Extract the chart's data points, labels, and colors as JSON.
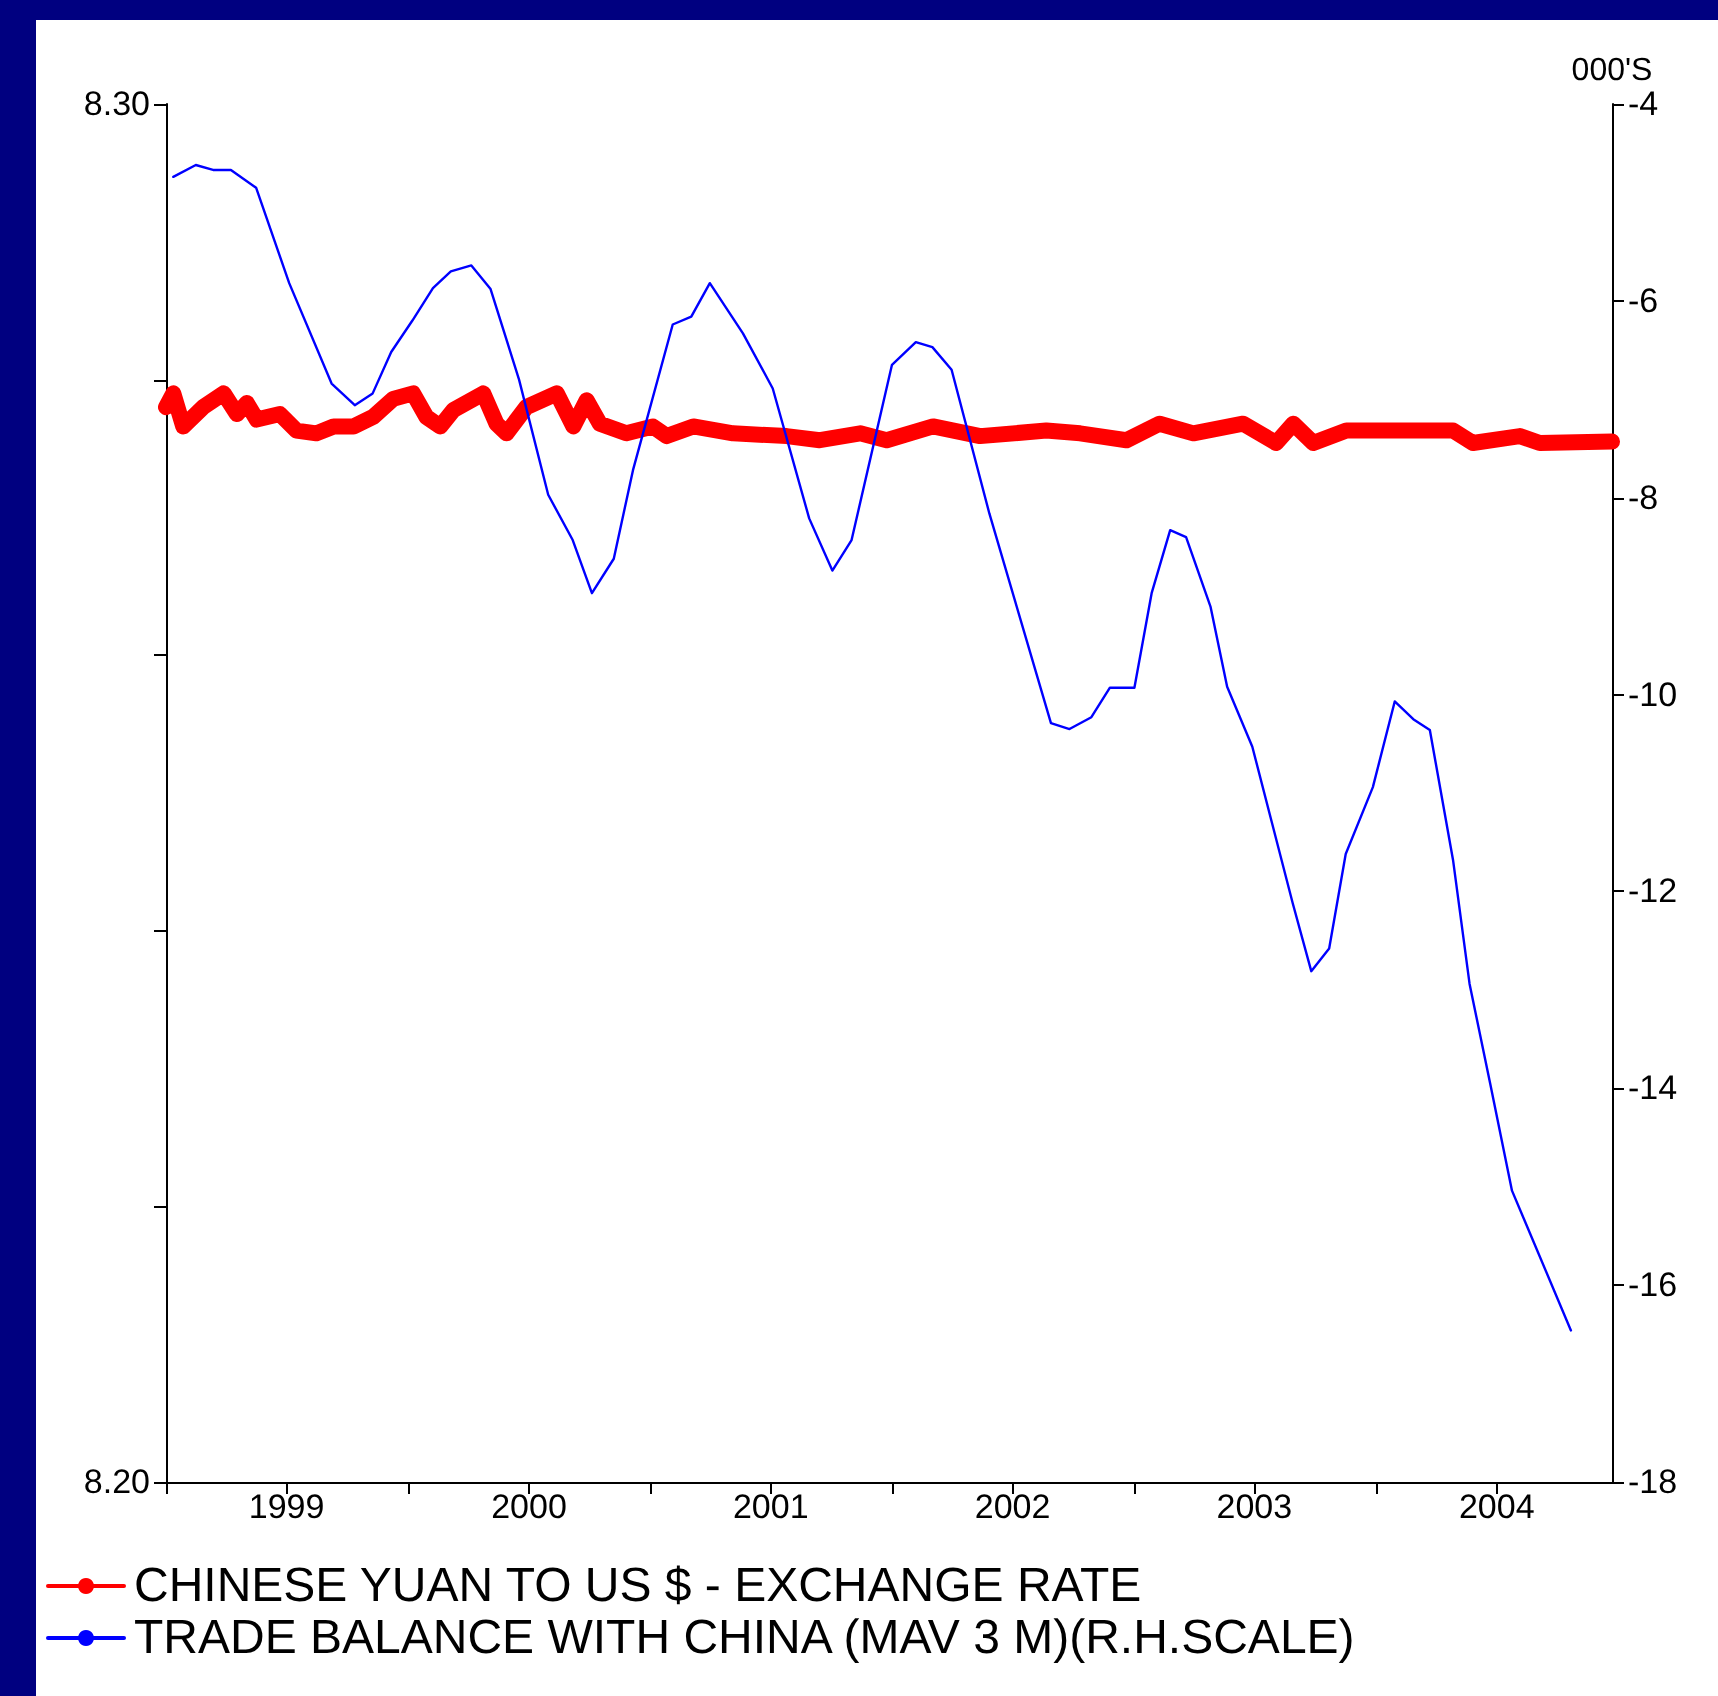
{
  "chart_data": {
    "type": "line",
    "xlim": [
      "1999-01-01",
      "2004-12-23"
    ],
    "xticks": [
      {
        "value": "1999-01-01",
        "label": null
      },
      {
        "value": "1999-07-02",
        "label": "1999"
      },
      {
        "value": "2000-01-01",
        "label": null
      },
      {
        "value": "2000-07-02",
        "label": "2000"
      },
      {
        "value": "2001-01-01",
        "label": null
      },
      {
        "value": "2001-07-02",
        "label": "2001"
      },
      {
        "value": "2002-01-01",
        "label": null
      },
      {
        "value": "2002-07-02",
        "label": "2002"
      },
      {
        "value": "2003-01-01",
        "label": null
      },
      {
        "value": "2003-07-02",
        "label": "2003"
      },
      {
        "value": "2004-01-01",
        "label": null
      },
      {
        "value": "2004-07-02",
        "label": "2004"
      }
    ],
    "ylim": [
      8.2,
      8.3
    ],
    "yticks": [
      {
        "value": 8.2,
        "label": "8.20"
      },
      {
        "value": 8.22,
        "label": null
      },
      {
        "value": 8.24,
        "label": null
      },
      {
        "value": 8.26,
        "label": null
      },
      {
        "value": 8.28,
        "label": null
      },
      {
        "value": 8.3,
        "label": "8.30"
      }
    ],
    "y2label": "000'S",
    "y2lim": [
      -18,
      -4
    ],
    "y2ticks": [
      -18,
      -16,
      -14,
      -12,
      -10,
      -8,
      -6,
      -4
    ],
    "grid": false,
    "legend": "bottom left",
    "marker": "none",
    "line_style": "solid",
    "series": [
      {
        "name": "CHINESE YUAN TO US $ - EXCHANGE RATE",
        "color": "#ff0000",
        "x": [
          "1999-01-01",
          "1999-01-12",
          "1999-01-27",
          "1999-02-26",
          "1999-03-29",
          "1999-04-18",
          "1999-05-03",
          "1999-05-18",
          "1999-06-22",
          "1999-07-17",
          "1999-08-16",
          "1999-09-11",
          "1999-10-11",
          "1999-11-10",
          "1999-12-10",
          "2000-01-09",
          "2000-01-29",
          "2000-02-19",
          "2000-03-10",
          "2000-04-24",
          "2000-05-14",
          "2000-05-29",
          "2000-06-28",
          "2000-08-13",
          "2000-09-07",
          "2000-09-27",
          "2000-10-17",
          "2000-11-26",
          "2001-01-05",
          "2001-01-26",
          "2001-03-07",
          "2001-05-06",
          "2001-07-26",
          "2001-09-14",
          "2001-11-14",
          "2001-12-24",
          "2002-03-04",
          "2002-05-14",
          "2002-08-22",
          "2002-10-12",
          "2002-12-21",
          "2003-02-09",
          "2003-04-01",
          "2003-06-15",
          "2003-08-04",
          "2003-08-30",
          "2003-09-29",
          "2003-11-18",
          "2004-02-27",
          "2004-04-27",
          "2004-05-27",
          "2004-08-06",
          "2004-09-05",
          "2004-12-23"
        ],
        "values": [
          8.278,
          8.279,
          8.2766,
          8.278,
          8.279,
          8.2775,
          8.2783,
          8.2771,
          8.2775,
          8.2763,
          8.2761,
          8.2766,
          8.2766,
          8.2773,
          8.2786,
          8.279,
          8.2773,
          8.2766,
          8.2778,
          8.279,
          8.2768,
          8.2761,
          8.278,
          8.279,
          8.2766,
          8.2785,
          8.2768,
          8.2761,
          8.2766,
          8.2759,
          8.2766,
          8.2761,
          8.2759,
          8.2756,
          8.2761,
          8.2756,
          8.2766,
          8.2759,
          8.2763,
          8.2761,
          8.2756,
          8.2768,
          8.2761,
          8.2768,
          8.2754,
          8.2768,
          8.2754,
          8.2763,
          8.2763,
          8.2763,
          8.2754,
          8.2759,
          8.2754,
          8.2755
        ]
      },
      {
        "name": "TRADE BALANCE WITH CHINA (MAV 3 M)(R.H.SCALE)",
        "color": "#0000ff",
        "axis": "y2",
        "x": [
          "1999-01-12",
          "1999-02-15",
          "1999-03-13",
          "1999-04-09",
          "1999-05-17",
          "1999-07-06",
          "1999-09-08",
          "1999-10-13",
          "1999-11-09",
          "1999-12-07",
          "2000-01-08",
          "2000-02-08",
          "2000-03-06",
          "2000-04-06",
          "2000-05-05",
          "2000-06-17",
          "2000-07-31",
          "2000-09-06",
          "2000-10-05",
          "2000-11-07",
          "2000-12-06",
          "2001-02-04",
          "2001-03-04",
          "2001-04-01",
          "2001-05-21",
          "2001-07-05",
          "2001-08-29",
          "2001-10-03",
          "2001-11-01",
          "2002-01-01",
          "2002-02-06",
          "2002-03-03",
          "2002-04-01",
          "2002-05-28",
          "2002-08-29",
          "2002-09-26",
          "2002-10-29",
          "2002-11-26",
          "2003-01-02",
          "2003-01-28",
          "2003-02-25",
          "2003-03-21",
          "2003-04-27",
          "2003-05-22",
          "2003-06-29",
          "2003-08-29",
          "2003-09-26",
          "2003-10-23",
          "2003-11-17",
          "2003-12-28",
          "2004-01-30",
          "2004-02-27",
          "2004-03-23",
          "2004-04-27",
          "2004-05-22",
          "2004-06-22",
          "2004-07-25",
          "2004-10-22"
        ],
        "values": [
          -4.74,
          -4.62,
          -4.67,
          -4.67,
          -4.85,
          -5.82,
          -6.84,
          -7.06,
          -6.94,
          -6.52,
          -6.2,
          -5.87,
          -5.7,
          -5.64,
          -5.88,
          -6.8,
          -7.97,
          -8.43,
          -8.97,
          -8.62,
          -7.72,
          -6.24,
          -6.16,
          -5.82,
          -6.33,
          -6.89,
          -8.21,
          -8.74,
          -8.43,
          -6.65,
          -6.42,
          -6.47,
          -6.7,
          -8.16,
          -10.29,
          -10.35,
          -10.23,
          -9.93,
          -9.93,
          -8.97,
          -8.33,
          -8.4,
          -9.11,
          -9.92,
          -10.53,
          -12.12,
          -12.81,
          -12.58,
          -11.62,
          -10.94,
          -10.07,
          -10.25,
          -10.36,
          -11.68,
          -12.94,
          -13.95,
          -15.04,
          -16.46
        ]
      }
    ]
  }
}
